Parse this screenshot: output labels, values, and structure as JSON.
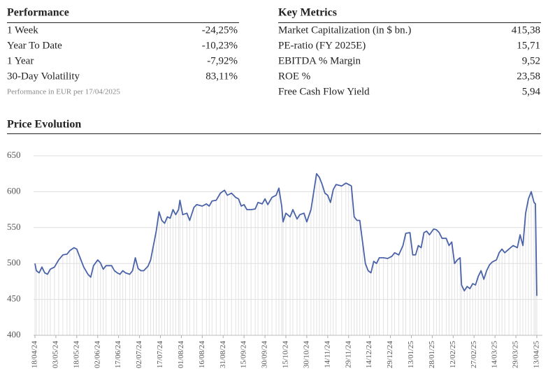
{
  "performance": {
    "title": "Performance",
    "rows": [
      [
        "1 Week",
        "-24,25%"
      ],
      [
        "Year To Date",
        "-10,23%"
      ],
      [
        "1 Year",
        "-7,92%"
      ],
      [
        "30-Day Volatility",
        "83,11%"
      ]
    ],
    "note": "Performance in EUR per 17/04/2025"
  },
  "key_metrics": {
    "title": "Key Metrics",
    "rows": [
      [
        "Market Capitalization (in $ bn.)",
        "415,38"
      ],
      [
        "PE-ratio (FY 2025E)",
        "15,71"
      ],
      [
        "EBITDA % Margin",
        "9,52"
      ],
      [
        "ROE %",
        "23,58"
      ],
      [
        "Free Cash Flow Yield",
        "5,94"
      ]
    ]
  },
  "chart_data": {
    "type": "line",
    "title": "Price Evolution",
    "x": [
      "18/04/24",
      "19/04/24",
      "21/04/24",
      "23/04/24",
      "25/04/24",
      "27/04/24",
      "29/04/24",
      "02/05/24",
      "05/05/24",
      "08/05/24",
      "11/05/24",
      "13/05/24",
      "16/05/24",
      "18/05/24",
      "20/05/24",
      "23/05/24",
      "26/05/24",
      "28/05/24",
      "30/05/24",
      "02/06/24",
      "04/06/24",
      "06/06/24",
      "08/06/24",
      "12/06/24",
      "14/06/24",
      "16/06/24",
      "18/06/24",
      "20/06/24",
      "22/06/24",
      "25/06/24",
      "27/06/24",
      "29/06/24",
      "01/07/24",
      "03/07/24",
      "05/07/24",
      "08/07/24",
      "10/07/24",
      "12/07/24",
      "14/07/24",
      "16/07/24",
      "18/07/24",
      "20/07/24",
      "22/07/24",
      "24/07/24",
      "26/07/24",
      "28/07/24",
      "30/07/24",
      "31/07/24",
      "02/08/24",
      "05/08/24",
      "07/08/24",
      "10/08/24",
      "12/08/24",
      "16/08/24",
      "19/08/24",
      "21/08/24",
      "23/08/24",
      "26/08/24",
      "29/08/24",
      "01/09/24",
      "03/09/24",
      "06/09/24",
      "09/09/24",
      "11/09/24",
      "13/09/24",
      "15/09/24",
      "17/09/24",
      "20/09/24",
      "23/09/24",
      "25/09/24",
      "28/09/24",
      "30/09/24",
      "02/10/24",
      "05/10/24",
      "08/10/24",
      "10/10/24",
      "12/10/24",
      "13/10/24",
      "15/10/24",
      "18/10/24",
      "20/10/24",
      "23/10/24",
      "25/10/24",
      "28/10/24",
      "30/10/24",
      "02/11/24",
      "04/11/24",
      "06/11/24",
      "08/11/24",
      "10/11/24",
      "12/11/24",
      "14/11/24",
      "16/11/24",
      "18/11/24",
      "20/11/24",
      "24/11/24",
      "27/11/24",
      "29/11/24",
      "01/12/24",
      "03/12/24",
      "05/12/24",
      "07/12/24",
      "09/12/24",
      "11/12/24",
      "13/12/24",
      "15/12/24",
      "17/12/24",
      "19/12/24",
      "21/12/24",
      "24/12/24",
      "27/12/24",
      "30/12/24",
      "01/01/25",
      "04/01/25",
      "07/01/25",
      "09/01/25",
      "12/01/25",
      "14/01/25",
      "16/01/25",
      "18/01/25",
      "20/01/25",
      "22/01/25",
      "24/01/25",
      "26/01/25",
      "29/01/25",
      "31/01/25",
      "02/02/25",
      "04/02/25",
      "07/02/25",
      "09/02/25",
      "11/02/25",
      "13/02/25",
      "15/02/25",
      "17/02/25",
      "18/02/25",
      "20/02/25",
      "22/02/25",
      "24/02/25",
      "26/02/25",
      "28/02/25",
      "02/03/25",
      "04/03/25",
      "06/03/25",
      "08/03/25",
      "10/03/25",
      "12/03/25",
      "15/03/25",
      "17/03/25",
      "19/03/25",
      "21/03/25",
      "24/03/25",
      "27/03/25",
      "30/03/25",
      "01/04/25",
      "03/04/25",
      "05/04/25",
      "07/04/25",
      "09/04/25",
      "11/04/25",
      "12/04/25",
      "13/04/25"
    ],
    "values": [
      500,
      490,
      487,
      495,
      487,
      485,
      492,
      495,
      505,
      512,
      513,
      518,
      522,
      520,
      510,
      495,
      485,
      481,
      497,
      505,
      501,
      492,
      497,
      497,
      490,
      487,
      485,
      490,
      487,
      485,
      490,
      508,
      493,
      490,
      490,
      496,
      505,
      525,
      545,
      572,
      560,
      556,
      565,
      563,
      575,
      568,
      575,
      588,
      568,
      570,
      560,
      578,
      582,
      580,
      583,
      580,
      587,
      588,
      598,
      602,
      595,
      598,
      592,
      590,
      580,
      582,
      575,
      575,
      576,
      585,
      583,
      590,
      582,
      592,
      595,
      605,
      580,
      558,
      570,
      565,
      575,
      562,
      568,
      570,
      558,
      575,
      600,
      625,
      620,
      610,
      598,
      595,
      585,
      603,
      610,
      608,
      612,
      610,
      608,
      565,
      560,
      560,
      530,
      500,
      490,
      487,
      503,
      500,
      508,
      508,
      507,
      510,
      515,
      512,
      525,
      542,
      543,
      512,
      512,
      525,
      522,
      543,
      545,
      540,
      548,
      547,
      543,
      535,
      535,
      525,
      530,
      500,
      505,
      508,
      470,
      462,
      468,
      465,
      472,
      470,
      482,
      490,
      478,
      490,
      498,
      502,
      505,
      515,
      520,
      515,
      520,
      525,
      522,
      540,
      525,
      570,
      590,
      600,
      585,
      583,
      455
    ],
    "color": "#4a62a8",
    "xlim": [
      "18/04/24",
      "13/04/25"
    ],
    "xticks": [
      "18/04/24",
      "03/05/24",
      "18/05/24",
      "02/06/24",
      "17/06/24",
      "02/07/24",
      "17/07/24",
      "01/08/24",
      "16/08/24",
      "31/08/24",
      "15/09/24",
      "30/09/24",
      "15/10/24",
      "30/10/24",
      "14/11/24",
      "29/11/24",
      "14/12/24",
      "29/12/24",
      "13/01/25",
      "28/01/25",
      "12/02/25",
      "27/02/25",
      "14/03/25",
      "29/03/25",
      "13/04/25"
    ],
    "ylim": [
      400,
      650
    ],
    "yticks": [
      400,
      450,
      500,
      550,
      600,
      650
    ],
    "grid": true
  }
}
